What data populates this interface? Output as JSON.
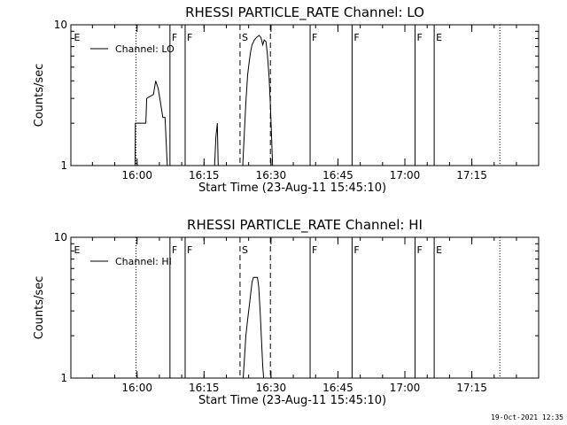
{
  "chart_data": [
    {
      "type": "line",
      "title": "RHESSI PARTICLE_RATE Channel: LO",
      "xlabel": "Start Time (23-Aug-11 15:45:10)",
      "ylabel": "Counts/sec",
      "yscale": "log",
      "ylim": [
        1,
        10
      ],
      "yticks": [
        {
          "value": 1,
          "label": "1"
        },
        {
          "value": 10,
          "label": "10"
        }
      ],
      "xlim_min": [
        0,
        104.8
      ],
      "xticks": [
        {
          "min": 14.83,
          "label": "16:00"
        },
        {
          "min": 29.83,
          "label": "16:15"
        },
        {
          "min": 44.83,
          "label": "16:30"
        },
        {
          "min": 59.83,
          "label": "16:45"
        },
        {
          "min": 74.83,
          "label": "17:00"
        },
        {
          "min": 89.83,
          "label": "17:15"
        }
      ],
      "legend": {
        "label": "Channel: LO",
        "placement": "top-left"
      },
      "series": [
        {
          "name": "Channel: LO",
          "points": [
            [
              14.4,
              1
            ],
            [
              14.45,
              2
            ],
            [
              16.8,
              2
            ],
            [
              17.0,
              3
            ],
            [
              18.5,
              3.2
            ],
            [
              19.0,
              4
            ],
            [
              19.6,
              3.5
            ],
            [
              20.6,
              2.2
            ],
            [
              21.1,
              2.2
            ],
            [
              21.6,
              1
            ],
            [
              32.2,
              1
            ],
            [
              32.5,
              1.6
            ],
            [
              32.8,
              2
            ],
            [
              33.0,
              1
            ],
            [
              38.5,
              1
            ],
            [
              38.9,
              1.8
            ],
            [
              39.2,
              2.8
            ],
            [
              39.6,
              4.4
            ],
            [
              40.0,
              5.6
            ],
            [
              40.3,
              6.5
            ],
            [
              40.6,
              7.2
            ],
            [
              41.1,
              7.8
            ],
            [
              41.7,
              8.2
            ],
            [
              42.2,
              8.4
            ],
            [
              42.6,
              8.1
            ],
            [
              43.0,
              7.2
            ],
            [
              43.3,
              7.8
            ],
            [
              43.7,
              7.6
            ],
            [
              44.0,
              6.3
            ],
            [
              44.4,
              4.3
            ],
            [
              44.7,
              2.7
            ],
            [
              45.0,
              1.5
            ],
            [
              45.2,
              1
            ]
          ]
        }
      ],
      "flags": [
        {
          "min": 0.3,
          "label": "E",
          "style": "none"
        },
        {
          "min": 14.6,
          "label": "",
          "style": "dotted"
        },
        {
          "min": 22.2,
          "label": "F",
          "style": "solid"
        },
        {
          "min": 25.6,
          "label": "F",
          "style": "solid"
        },
        {
          "min": 37.9,
          "label": "S",
          "style": "dashed"
        },
        {
          "min": 44.7,
          "label": "",
          "style": "dashed"
        },
        {
          "min": 53.6,
          "label": "F",
          "style": "solid"
        },
        {
          "min": 63.0,
          "label": "F",
          "style": "solid"
        },
        {
          "min": 77.1,
          "label": "F",
          "style": "solid"
        },
        {
          "min": 81.4,
          "label": "E",
          "style": "solid"
        },
        {
          "min": 96.1,
          "label": "",
          "style": "dotted"
        }
      ]
    },
    {
      "type": "line",
      "title": "RHESSI PARTICLE_RATE Channel: HI",
      "xlabel": "Start Time (23-Aug-11 15:45:10)",
      "ylabel": "Counts/sec",
      "yscale": "log",
      "ylim": [
        1,
        10
      ],
      "yticks": [
        {
          "value": 1,
          "label": "1"
        },
        {
          "value": 10,
          "label": "10"
        }
      ],
      "xlim_min": [
        0,
        104.8
      ],
      "xticks": [
        {
          "min": 14.83,
          "label": "16:00"
        },
        {
          "min": 29.83,
          "label": "16:15"
        },
        {
          "min": 44.83,
          "label": "16:30"
        },
        {
          "min": 59.83,
          "label": "16:45"
        },
        {
          "min": 74.83,
          "label": "17:00"
        },
        {
          "min": 89.83,
          "label": "17:15"
        }
      ],
      "legend": {
        "label": "Channel: HI",
        "placement": "top-left"
      },
      "series": [
        {
          "name": "Channel: HI",
          "points": [
            [
              38.6,
              1
            ],
            [
              38.9,
              1.4
            ],
            [
              39.2,
              2
            ],
            [
              39.6,
              2.6
            ],
            [
              40.0,
              3.3
            ],
            [
              40.3,
              4.0
            ],
            [
              40.6,
              4.8
            ],
            [
              40.9,
              5.2
            ],
            [
              41.4,
              5.2
            ],
            [
              41.8,
              5.2
            ],
            [
              42.1,
              4.4
            ],
            [
              42.4,
              3.0
            ],
            [
              42.7,
              1.9
            ],
            [
              43.0,
              1.2
            ],
            [
              43.2,
              1
            ]
          ]
        }
      ],
      "flags": [
        {
          "min": 0.3,
          "label": "E",
          "style": "none"
        },
        {
          "min": 14.6,
          "label": "",
          "style": "dotted"
        },
        {
          "min": 22.2,
          "label": "F",
          "style": "solid"
        },
        {
          "min": 25.6,
          "label": "F",
          "style": "solid"
        },
        {
          "min": 37.9,
          "label": "S",
          "style": "dashed"
        },
        {
          "min": 44.7,
          "label": "",
          "style": "dashed"
        },
        {
          "min": 53.6,
          "label": "F",
          "style": "solid"
        },
        {
          "min": 63.0,
          "label": "F",
          "style": "solid"
        },
        {
          "min": 77.1,
          "label": "F",
          "style": "solid"
        },
        {
          "min": 81.4,
          "label": "E",
          "style": "solid"
        },
        {
          "min": 96.1,
          "label": "",
          "style": "dotted"
        }
      ]
    }
  ],
  "footer": {
    "timestamp": "19-Oct-2021 12:35"
  }
}
